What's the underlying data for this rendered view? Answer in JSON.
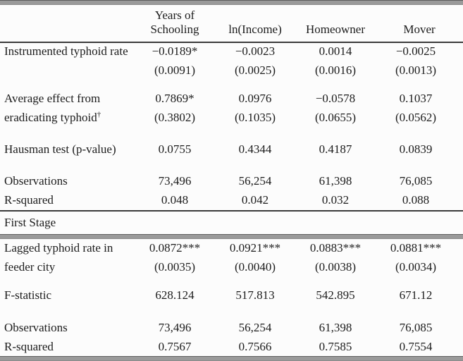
{
  "table": {
    "columns": [
      "Years of Schooling",
      "ln(Income)",
      "Homeowner",
      "Mover"
    ],
    "panel_a": {
      "rows": [
        {
          "label": "Instrumented typhoid rate",
          "values": [
            "−0.0189*",
            "−0.0023",
            "0.0014",
            "−0.0025"
          ]
        },
        {
          "label": "",
          "values": [
            "(0.0091)",
            "(0.0025)",
            "(0.0016)",
            "(0.0013)"
          ]
        },
        {
          "label": "Average effect from",
          "values": [
            "0.7869*",
            "0.0976",
            "−0.0578",
            "0.1037"
          ]
        },
        {
          "label": "eradicating typhoid",
          "label_sup": "†",
          "values": [
            "(0.3802)",
            "(0.1035)",
            "(0.0655)",
            "(0.0562)"
          ]
        },
        {
          "label": "Hausman test (p-value)",
          "values": [
            "0.0755",
            "0.4344",
            "0.4187",
            "0.0839"
          ]
        },
        {
          "label": "Observations",
          "values": [
            "73,496",
            "56,254",
            "61,398",
            "76,085"
          ]
        },
        {
          "label": "R-squared",
          "values": [
            "0.048",
            "0.042",
            "0.032",
            "0.088"
          ]
        }
      ]
    },
    "section_label": "First Stage",
    "panel_b": {
      "rows": [
        {
          "label": "Lagged typhoid rate in",
          "values": [
            "0.0872***",
            "0.0921***",
            "0.0883***",
            "0.0881***"
          ]
        },
        {
          "label": "feeder city",
          "values": [
            "(0.0035)",
            "(0.0040)",
            "(0.0038)",
            "(0.0034)"
          ]
        },
        {
          "label": "F-statistic",
          "values": [
            "628.124",
            "517.813",
            "542.895",
            "671.12"
          ]
        },
        {
          "label": "Observations",
          "values": [
            "73,496",
            "56,254",
            "61,398",
            "76,085"
          ]
        },
        {
          "label": "R-squared",
          "values": [
            "0.7567",
            "0.7566",
            "0.7585",
            "0.7554"
          ]
        }
      ]
    }
  }
}
